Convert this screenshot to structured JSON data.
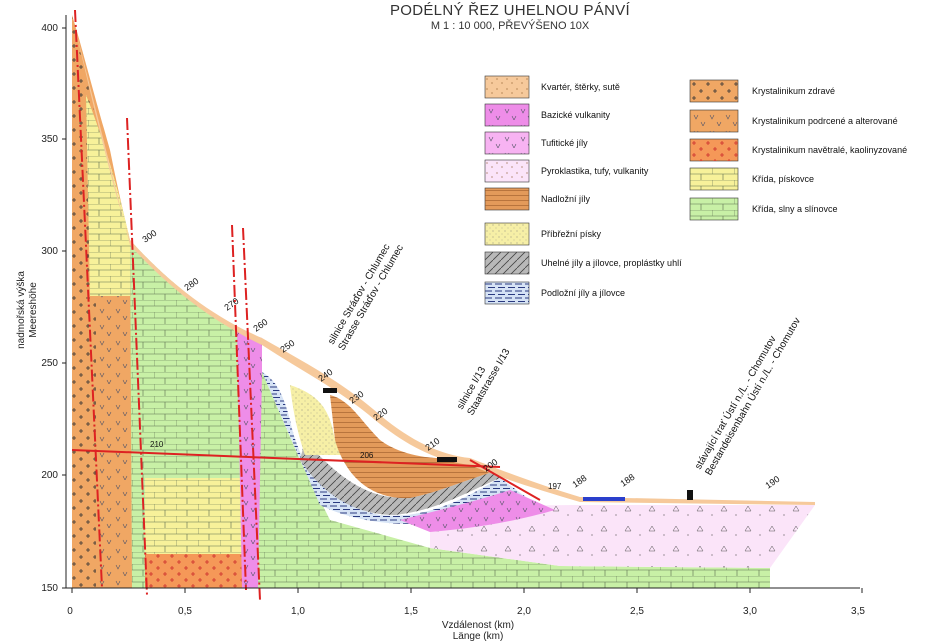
{
  "header": {
    "title": "PODÉLNÝ ŘEZ UHELNOU PÁNVÍ",
    "subtitle": "M 1 : 10 000, PŘEVÝŠENO 10X"
  },
  "axes": {
    "y_label_line1": "nadmořská výška",
    "y_label_line2": "Meereshöhe",
    "x_label_line1": "Vzdálenost (km)",
    "x_label_line2": "Länge (km)",
    "y_ticks": [
      "400",
      "350",
      "300",
      "250",
      "200",
      "150"
    ],
    "x_ticks": [
      "0",
      "0,5",
      "1,0",
      "1,5",
      "2,0",
      "2,5",
      "3,0",
      "3,5"
    ]
  },
  "legend": {
    "left": [
      {
        "label": "Kvartér, štěrky, sutě",
        "color": "#f6c99b",
        "pattern": "dots"
      },
      {
        "label": "Bazické vulkanity",
        "color": "#ee8de8",
        "pattern": "v"
      },
      {
        "label": "Tufitické jíly",
        "color": "#f7b3f2",
        "pattern": "v"
      },
      {
        "label": "Pyroklastika, tufy, vulkanity",
        "color": "#fbe4f9",
        "pattern": "dots"
      },
      {
        "label": "Nadložní jíly",
        "color": "#e39a5a",
        "pattern": "hlines"
      },
      {
        "label": "Příbřežní písky",
        "color": "#f6efa6",
        "pattern": "dots"
      },
      {
        "label": "Uhelné jíly a jílovce, proplástky uhlí",
        "color": "#b9b9b9",
        "pattern": "diag"
      },
      {
        "label": "Podložní jíly a jílovce",
        "color": "#d6e3f5",
        "pattern": "hlines-blue"
      }
    ],
    "right": [
      {
        "label": "Krystalinikum zdravé",
        "color": "#f0a764",
        "pattern": "plus"
      },
      {
        "label": "Krystalinikum podrcené a alterované",
        "color": "#f0a764",
        "pattern": "v"
      },
      {
        "label": "Krystalinikum navětralé, kaolinyzované",
        "color": "#f59858",
        "pattern": "plus-red"
      },
      {
        "label": "Křída, pískovce",
        "color": "#f7f19a",
        "pattern": "brick"
      },
      {
        "label": "Křída, slny a slínovce",
        "color": "#c8f0a6",
        "pattern": "brick"
      }
    ]
  },
  "annotations": {
    "road1_line1": "silnice Stráďov - Chlumec",
    "road1_line2": "Strasse Stráďov - Chlumec",
    "road2_line1": "silnice I/13",
    "road2_line2": "Staatstrasse I/13",
    "rail_line1": "stávající trať Ústí n./L. - Chomutov",
    "rail_line2": "Bestandeisenbahn Ústí n./L. - Chomutov",
    "contours": [
      "300",
      "280",
      "270",
      "260",
      "250",
      "240",
      "230",
      "220",
      "210",
      "200",
      "197",
      "188",
      "188",
      "190",
      "210",
      "206"
    ]
  }
}
